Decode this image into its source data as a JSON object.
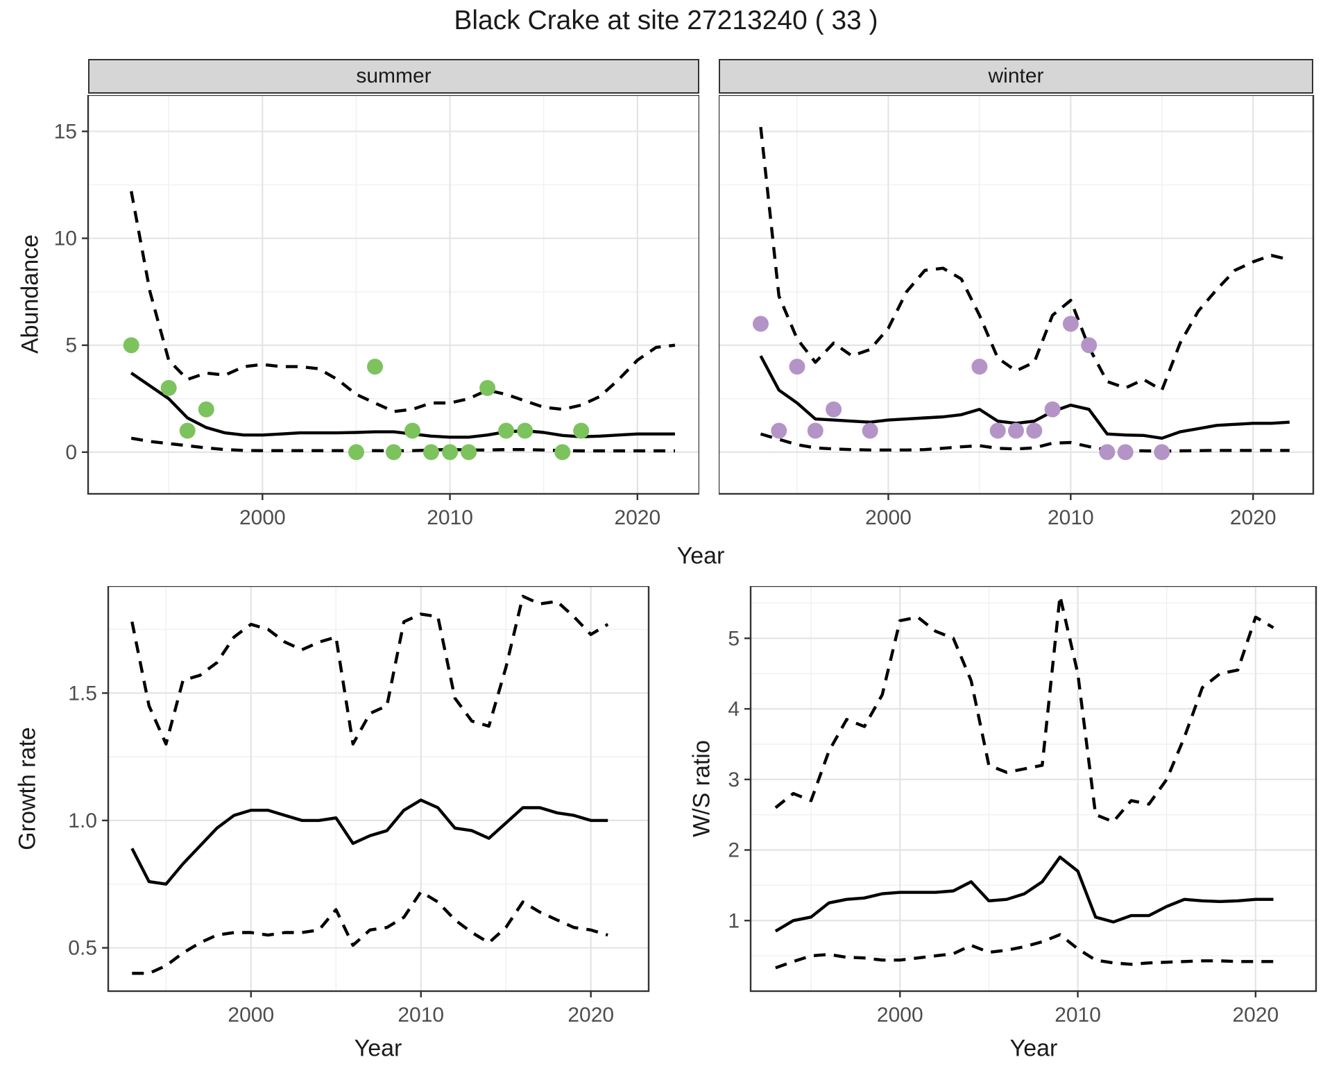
{
  "title": "Black Crake at site 27213240 ( 33 )",
  "facets": {
    "summer_label": "summer",
    "winter_label": "winter"
  },
  "axes": {
    "abundance_label": "Abundance",
    "year_label_top": "Year",
    "growth_label": "Growth rate",
    "ws_label": "W/S ratio",
    "year_label_bottom_left": "Year",
    "year_label_bottom_right": "Year"
  },
  "colors": {
    "summer_point": "#7cc35e",
    "winter_point": "#b494c7",
    "line": "#000000",
    "grid_major": "#e4e4e4",
    "grid_minor": "#f1f1f1",
    "strip_bg": "#d6d6d6",
    "panel_border": "#333333",
    "tick_label": "#4d4d4d"
  },
  "chart_data": [
    {
      "id": "summer_abundance",
      "type": "line",
      "facet": "summer",
      "xlabel": "Year",
      "ylabel": "Abundance",
      "xlim": [
        1990.7,
        2023.3
      ],
      "ylim": [
        -1.95,
        16.7
      ],
      "xticks": [
        2000,
        2010,
        2020
      ],
      "xtick_labels": [
        "2000",
        "2010",
        "2020"
      ],
      "yticks": [
        0,
        5,
        10,
        15
      ],
      "ytick_labels": [
        "0",
        "5",
        "10",
        "15"
      ],
      "xminor": [
        1995,
        2005,
        2015
      ],
      "yminor": [
        2.5,
        7.5,
        12.5
      ],
      "grid": true,
      "legend": "none",
      "years": [
        1993,
        1994,
        1995,
        1996,
        1997,
        1998,
        1999,
        2000,
        2001,
        2002,
        2003,
        2004,
        2005,
        2006,
        2007,
        2008,
        2009,
        2010,
        2011,
        2012,
        2013,
        2014,
        2015,
        2016,
        2017,
        2018,
        2019,
        2020,
        2021,
        2022
      ],
      "series": [
        {
          "name": "fit_median",
          "style": "solid",
          "values": [
            3.7,
            3.1,
            2.5,
            1.6,
            1.15,
            0.9,
            0.8,
            0.8,
            0.85,
            0.9,
            0.9,
            0.9,
            0.92,
            0.95,
            0.95,
            0.85,
            0.75,
            0.7,
            0.7,
            0.8,
            0.95,
            1.0,
            0.92,
            0.78,
            0.72,
            0.75,
            0.8,
            0.85,
            0.85,
            0.85
          ]
        },
        {
          "name": "upper_ci",
          "style": "dashed",
          "values": [
            12.2,
            7.5,
            4.3,
            3.4,
            3.7,
            3.6,
            4.0,
            4.1,
            4.0,
            4.0,
            3.9,
            3.4,
            2.7,
            2.3,
            1.9,
            2.0,
            2.3,
            2.3,
            2.5,
            2.9,
            2.7,
            2.4,
            2.1,
            2.0,
            2.2,
            2.6,
            3.4,
            4.3,
            4.9,
            5.0
          ]
        },
        {
          "name": "lower_ci",
          "style": "dashed",
          "values": [
            0.65,
            0.5,
            0.4,
            0.3,
            0.2,
            0.12,
            0.08,
            0.07,
            0.07,
            0.07,
            0.07,
            0.07,
            0.07,
            0.07,
            0.06,
            0.07,
            0.1,
            0.13,
            0.1,
            0.1,
            0.12,
            0.12,
            0.1,
            0.07,
            0.06,
            0.06,
            0.06,
            0.06,
            0.06,
            0.06
          ]
        }
      ],
      "points": {
        "name": "observed_counts",
        "color_key": "summer_point",
        "data": [
          [
            1993,
            5
          ],
          [
            1995,
            3
          ],
          [
            1996,
            1
          ],
          [
            1997,
            2
          ],
          [
            2005,
            0
          ],
          [
            2006,
            4
          ],
          [
            2007,
            0
          ],
          [
            2008,
            1
          ],
          [
            2009,
            0
          ],
          [
            2010,
            0
          ],
          [
            2011,
            0
          ],
          [
            2012,
            3
          ],
          [
            2013,
            1
          ],
          [
            2014,
            1
          ],
          [
            2016,
            0
          ],
          [
            2017,
            1
          ]
        ]
      }
    },
    {
      "id": "winter_abundance",
      "type": "line",
      "facet": "winter",
      "xlabel": "Year",
      "ylabel": "Abundance",
      "xlim": [
        1990.7,
        2023.3
      ],
      "ylim": [
        -1.95,
        16.7
      ],
      "xticks": [
        2000,
        2010,
        2020
      ],
      "xtick_labels": [
        "2000",
        "2010",
        "2020"
      ],
      "yticks": [
        0,
        5,
        10,
        15
      ],
      "ytick_labels": [],
      "xminor": [
        1995,
        2005,
        2015
      ],
      "yminor": [
        2.5,
        7.5,
        12.5
      ],
      "grid": true,
      "legend": "none",
      "years": [
        1993,
        1994,
        1995,
        1996,
        1997,
        1998,
        1999,
        2000,
        2001,
        2002,
        2003,
        2004,
        2005,
        2006,
        2007,
        2008,
        2009,
        2010,
        2011,
        2012,
        2013,
        2014,
        2015,
        2016,
        2017,
        2018,
        2019,
        2020,
        2021,
        2022
      ],
      "series": [
        {
          "name": "fit_median",
          "style": "solid",
          "values": [
            4.5,
            2.9,
            2.3,
            1.55,
            1.5,
            1.45,
            1.4,
            1.5,
            1.55,
            1.6,
            1.65,
            1.75,
            2.0,
            1.45,
            1.35,
            1.45,
            1.9,
            2.2,
            2.0,
            0.85,
            0.8,
            0.78,
            0.65,
            0.95,
            1.1,
            1.25,
            1.3,
            1.35,
            1.35,
            1.4
          ]
        },
        {
          "name": "upper_ci",
          "style": "dashed",
          "values": [
            15.2,
            7.3,
            5.3,
            4.2,
            5.1,
            4.5,
            4.8,
            5.8,
            7.5,
            8.5,
            8.6,
            8.1,
            6.4,
            4.4,
            3.8,
            4.2,
            6.4,
            7.1,
            4.9,
            3.3,
            3.0,
            3.4,
            2.9,
            5.1,
            6.6,
            7.6,
            8.5,
            8.9,
            9.2,
            9.0
          ]
        },
        {
          "name": "lower_ci",
          "style": "dashed",
          "values": [
            0.85,
            0.6,
            0.35,
            0.2,
            0.15,
            0.12,
            0.1,
            0.1,
            0.1,
            0.12,
            0.18,
            0.25,
            0.3,
            0.18,
            0.15,
            0.2,
            0.42,
            0.45,
            0.26,
            0.1,
            0.07,
            0.06,
            0.05,
            0.06,
            0.07,
            0.08,
            0.08,
            0.08,
            0.08,
            0.08
          ]
        }
      ],
      "points": {
        "name": "observed_counts",
        "color_key": "winter_point",
        "data": [
          [
            1993,
            6
          ],
          [
            1994,
            1
          ],
          [
            1995,
            4
          ],
          [
            1996,
            1
          ],
          [
            1997,
            2
          ],
          [
            1999,
            1
          ],
          [
            2005,
            4
          ],
          [
            2006,
            1
          ],
          [
            2007,
            1
          ],
          [
            2008,
            1
          ],
          [
            2009,
            2
          ],
          [
            2010,
            6
          ],
          [
            2011,
            5
          ],
          [
            2012,
            0
          ],
          [
            2013,
            0
          ],
          [
            2015,
            0
          ]
        ]
      }
    },
    {
      "id": "growth_rate",
      "type": "line",
      "xlabel": "Year",
      "ylabel": "Growth rate",
      "xlim": [
        1991.6,
        2023.4
      ],
      "ylim": [
        0.33,
        1.92
      ],
      "xticks": [
        2000,
        2010,
        2020
      ],
      "xtick_labels": [
        "2000",
        "2010",
        "2020"
      ],
      "yticks": [
        0.5,
        1.0,
        1.5
      ],
      "ytick_labels": [
        "0.5",
        "1.0",
        "1.5"
      ],
      "xminor": [
        1995,
        2005,
        2015
      ],
      "yminor": [
        0.75,
        1.25,
        1.75
      ],
      "grid": true,
      "legend": "none",
      "years": [
        1993,
        1994,
        1995,
        1996,
        1997,
        1998,
        1999,
        2000,
        2001,
        2002,
        2003,
        2004,
        2005,
        2006,
        2007,
        2008,
        2009,
        2010,
        2011,
        2012,
        2013,
        2014,
        2015,
        2016,
        2017,
        2018,
        2019,
        2020,
        2021
      ],
      "series": [
        {
          "name": "fit_median",
          "style": "solid",
          "values": [
            0.89,
            0.76,
            0.75,
            0.83,
            0.9,
            0.97,
            1.02,
            1.04,
            1.04,
            1.02,
            1.0,
            1.0,
            1.01,
            0.91,
            0.94,
            0.96,
            1.04,
            1.08,
            1.05,
            0.97,
            0.96,
            0.93,
            0.99,
            1.05,
            1.05,
            1.03,
            1.02,
            1.0,
            1.0
          ]
        },
        {
          "name": "upper_ci",
          "style": "dashed",
          "values": [
            1.78,
            1.45,
            1.3,
            1.55,
            1.57,
            1.62,
            1.72,
            1.77,
            1.75,
            1.7,
            1.67,
            1.7,
            1.72,
            1.3,
            1.42,
            1.45,
            1.78,
            1.81,
            1.8,
            1.48,
            1.39,
            1.37,
            1.6,
            1.88,
            1.85,
            1.86,
            1.8,
            1.73,
            1.77
          ]
        },
        {
          "name": "lower_ci",
          "style": "dashed",
          "values": [
            0.4,
            0.4,
            0.43,
            0.48,
            0.52,
            0.55,
            0.56,
            0.56,
            0.55,
            0.56,
            0.56,
            0.57,
            0.65,
            0.51,
            0.57,
            0.58,
            0.62,
            0.72,
            0.68,
            0.61,
            0.56,
            0.52,
            0.58,
            0.68,
            0.64,
            0.61,
            0.58,
            0.57,
            0.55
          ]
        }
      ]
    },
    {
      "id": "ws_ratio",
      "type": "line",
      "xlabel": "Year",
      "ylabel": "W/S ratio",
      "xlim": [
        1991.6,
        2023.4
      ],
      "ylim": [
        0.0,
        5.74
      ],
      "xticks": [
        2000,
        2010,
        2020
      ],
      "xtick_labels": [
        "2000",
        "2010",
        "2020"
      ],
      "yticks": [
        1,
        2,
        3,
        4,
        5
      ],
      "ytick_labels": [
        "1",
        "2",
        "3",
        "4",
        "5"
      ],
      "xminor": [
        1995,
        2005,
        2015
      ],
      "yminor": [
        0.5,
        1.5,
        2.5,
        3.5,
        4.5,
        5.5
      ],
      "grid": true,
      "legend": "none",
      "years": [
        1993,
        1994,
        1995,
        1996,
        1997,
        1998,
        1999,
        2000,
        2001,
        2002,
        2003,
        2004,
        2005,
        2006,
        2007,
        2008,
        2009,
        2010,
        2011,
        2012,
        2013,
        2014,
        2015,
        2016,
        2017,
        2018,
        2019,
        2020,
        2021
      ],
      "series": [
        {
          "name": "fit_median",
          "style": "solid",
          "values": [
            0.85,
            1.0,
            1.05,
            1.25,
            1.3,
            1.32,
            1.38,
            1.4,
            1.4,
            1.4,
            1.42,
            1.55,
            1.28,
            1.3,
            1.38,
            1.55,
            1.9,
            1.7,
            1.05,
            0.98,
            1.07,
            1.07,
            1.2,
            1.3,
            1.28,
            1.27,
            1.28,
            1.3,
            1.3
          ]
        },
        {
          "name": "upper_ci",
          "style": "dashed",
          "values": [
            2.6,
            2.8,
            2.7,
            3.4,
            3.85,
            3.75,
            4.2,
            5.25,
            5.3,
            5.1,
            5.0,
            4.4,
            3.2,
            3.1,
            3.15,
            3.2,
            5.6,
            4.5,
            2.5,
            2.4,
            2.7,
            2.65,
            3.0,
            3.6,
            4.3,
            4.5,
            4.55,
            5.3,
            5.15
          ]
        },
        {
          "name": "lower_ci",
          "style": "dashed",
          "values": [
            0.33,
            0.42,
            0.5,
            0.52,
            0.48,
            0.47,
            0.44,
            0.44,
            0.47,
            0.5,
            0.53,
            0.65,
            0.55,
            0.58,
            0.63,
            0.7,
            0.8,
            0.6,
            0.44,
            0.4,
            0.38,
            0.4,
            0.41,
            0.42,
            0.43,
            0.43,
            0.42,
            0.42,
            0.42
          ]
        }
      ]
    }
  ]
}
